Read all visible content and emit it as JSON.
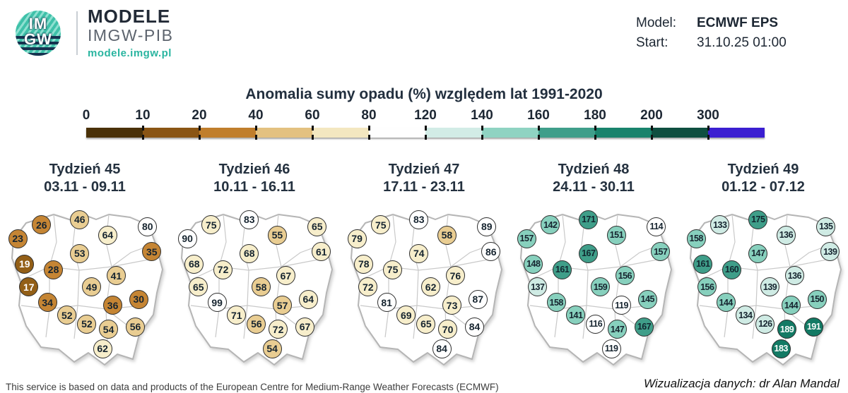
{
  "header": {
    "logo": {
      "circle_top": "IM",
      "circle_bottom": "GW",
      "line1": "MODELE",
      "line2": "IMGW-PIB",
      "url": "modele.imgw.pl"
    },
    "model_label": "Model:",
    "model_value": "ECMWF EPS",
    "start_label": "Start:",
    "start_value": "31.10.25 01:00"
  },
  "chart_data": {
    "type": "heatmap",
    "title": "Anomalia sumy opadu (%) względem lat 1991-2020",
    "legend_position": "top",
    "colorbar": {
      "tick_labels": [
        "0",
        "10",
        "20",
        "40",
        "60",
        "80",
        "120",
        "140",
        "160",
        "180",
        "200",
        "300"
      ],
      "segment_colors": [
        "#4a3108",
        "#8a5514",
        "#c07e2c",
        "#e3c180",
        "#f3e7c0",
        "#fefefe",
        "#d2ece6",
        "#8fd3c2",
        "#3f9e8a",
        "#19836c",
        "#0f4f40",
        "#3b1fd1"
      ]
    },
    "value_bins": [
      {
        "min": 0,
        "fill": "#4f3407",
        "text": "#ffffff"
      },
      {
        "min": 10,
        "fill": "#935f17",
        "text": "#ffffff"
      },
      {
        "min": 20,
        "fill": "#c58534",
        "text": "#16242f"
      },
      {
        "min": 40,
        "fill": "#e9cd92",
        "text": "#16242f"
      },
      {
        "min": 60,
        "fill": "#f7eecb",
        "text": "#16242f"
      },
      {
        "min": 80,
        "fill": "#ffffff",
        "text": "#16242f"
      },
      {
        "min": 120,
        "fill": "#cfebe4",
        "text": "#16242f"
      },
      {
        "min": 140,
        "fill": "#87d0bd",
        "text": "#16242f"
      },
      {
        "min": 160,
        "fill": "#3f9e89",
        "text": "#11262f"
      },
      {
        "min": 180,
        "fill": "#137a64",
        "text": "#ffffff"
      },
      {
        "min": 200,
        "fill": "#0e4f40",
        "text": "#ffffff"
      },
      {
        "min": 300,
        "fill": "#3b1fd1",
        "text": "#ffffff"
      }
    ],
    "positions_pct": [
      [
        10.5,
        20.5
      ],
      [
        24.5,
        12.5
      ],
      [
        47.0,
        9.5
      ],
      [
        63.5,
        18.5
      ],
      [
        87.0,
        13.5
      ],
      [
        14.5,
        35.2
      ],
      [
        31.5,
        38.4
      ],
      [
        47.0,
        29.0
      ],
      [
        89.5,
        28.0
      ],
      [
        17.0,
        48.5
      ],
      [
        54.0,
        48.4
      ],
      [
        68.5,
        42.0
      ],
      [
        28.0,
        57.5
      ],
      [
        66.5,
        59.0
      ],
      [
        81.8,
        55.6
      ],
      [
        39.5,
        64.8
      ],
      [
        51.2,
        69.8
      ],
      [
        64.0,
        73.0
      ],
      [
        79.8,
        71.5
      ],
      [
        60.5,
        84.2
      ]
    ],
    "series": [
      {
        "name": "Tydzień 45",
        "range": "03.11 - 09.11",
        "values": [
          23,
          26,
          46,
          64,
          80,
          19,
          28,
          53,
          35,
          17,
          49,
          41,
          34,
          36,
          30,
          52,
          52,
          54,
          56,
          62
        ]
      },
      {
        "name": "Tydzień 46",
        "range": "10.11 - 16.11",
        "values": [
          90,
          75,
          83,
          55,
          65,
          68,
          72,
          68,
          61,
          65,
          58,
          67,
          99,
          57,
          64,
          71,
          56,
          72,
          67,
          54
        ]
      },
      {
        "name": "Tydzień 47",
        "range": "17.11 - 23.11",
        "values": [
          79,
          75,
          83,
          58,
          89,
          78,
          75,
          74,
          86,
          72,
          62,
          76,
          81,
          73,
          87,
          69,
          65,
          70,
          84,
          84
        ]
      },
      {
        "name": "Tydzień 48",
        "range": "24.11 - 30.11",
        "values": [
          157,
          142,
          171,
          151,
          114,
          148,
          161,
          167,
          157,
          137,
          159,
          156,
          158,
          119,
          145,
          141,
          116,
          147,
          167,
          119
        ]
      },
      {
        "name": "Tydzień 49",
        "range": "01.12 - 07.12",
        "values": [
          158,
          133,
          175,
          136,
          135,
          161,
          160,
          147,
          139,
          156,
          139,
          136,
          144,
          144,
          150,
          134,
          126,
          189,
          191,
          183
        ]
      }
    ]
  },
  "footer": {
    "left": "This service is based on data and products of the European Centre for Medium-Range Weather Forecasts (ECMWF)",
    "right": "Wizualizacja danych: dr Alan Mandal"
  }
}
